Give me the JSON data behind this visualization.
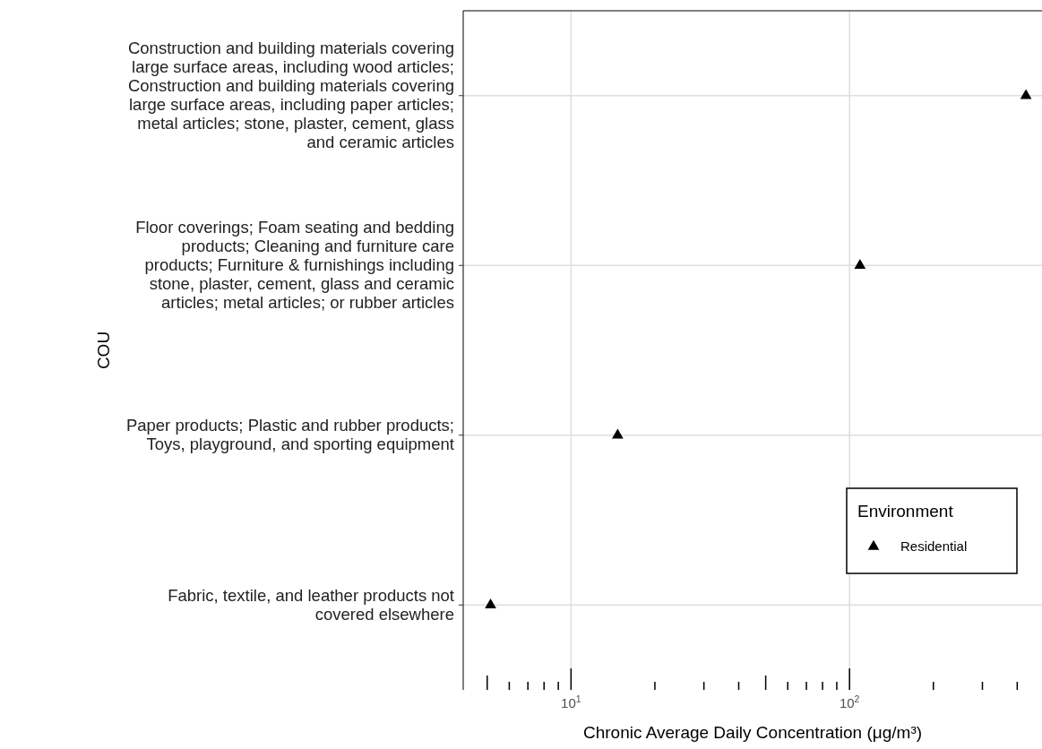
{
  "chart_data": {
    "type": "scatter",
    "categories": [
      "Construction and building materials covering large surface areas, including wood articles; Construction and building materials covering large surface areas, including paper articles; metal articles; stone, plaster, cement, glass and ceramic articles",
      "Floor coverings; Foam seating and bedding products; Cleaning and furniture care products; Furniture & furnishings including stone, plaster, cement, glass and ceramic articles; metal articles; or rubber articles",
      "Paper products; Plastic and rubber products; Toys, playground, and sporting equipment",
      "Fabric, textile, and leather products not covered elsewhere"
    ],
    "orientation": "horizontal",
    "series": [
      {
        "name": "Residential",
        "color": "#000000",
        "values": [
          430,
          109,
          14.7,
          5.14
        ]
      }
    ],
    "xlim": [
      4.1,
      491
    ],
    "log": "x",
    "xticks": [
      {
        "value": 5,
        "label": null
      },
      {
        "value": 6,
        "label": null
      },
      {
        "value": 7,
        "label": null
      },
      {
        "value": 8,
        "label": null
      },
      {
        "value": 9,
        "label": null
      },
      {
        "value": 10,
        "label": "10$^{1}$"
      },
      {
        "value": 20,
        "label": null
      },
      {
        "value": 30,
        "label": null
      },
      {
        "value": 40,
        "label": null
      },
      {
        "value": 50,
        "label": null
      },
      {
        "value": 60,
        "label": null
      },
      {
        "value": 70,
        "label": null
      },
      {
        "value": 80,
        "label": null
      },
      {
        "value": 90,
        "label": null
      },
      {
        "value": 100,
        "label": "10$^{2}$"
      },
      {
        "value": 200,
        "label": null
      },
      {
        "value": 300,
        "label": null
      },
      {
        "value": 400,
        "label": null
      }
    ],
    "xlabel": "Chronic Average Daily Concentration (μg/m³)",
    "ylabel": "COU",
    "legend_title": "Environment",
    "legend": "bottom right",
    "marker": "triangle",
    "grid": true
  }
}
